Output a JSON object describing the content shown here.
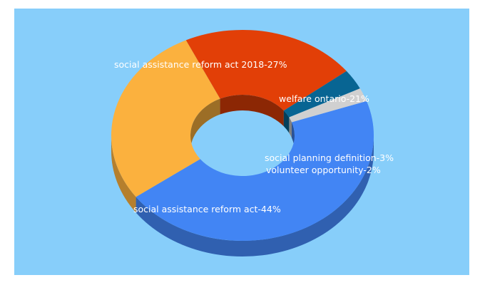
{
  "chart_data": {
    "type": "pie",
    "donut": true,
    "three_d": true,
    "background_color": "#87CEFA",
    "series": [
      {
        "values": [
          {
            "label": "social assistance reform act",
            "value": 44,
            "display": "social assistance reform act-44%",
            "color": "#4285F4"
          },
          {
            "label": "social assistance reform act 2018",
            "value": 27,
            "display": "social assistance reform act 2018-27%",
            "color": "#FBB13E"
          },
          {
            "label": "welfare ontario",
            "value": 21,
            "display": "welfare ontario-21%",
            "color": "#E23F07"
          },
          {
            "label": "social planning definition",
            "value": 3,
            "display": "social planning definition-3%",
            "color": "#086593"
          },
          {
            "label": "volunteer opportunity",
            "value": 2,
            "display": "volunteer opportunity-2%",
            "color": "#D0D0D0"
          }
        ]
      }
    ]
  }
}
